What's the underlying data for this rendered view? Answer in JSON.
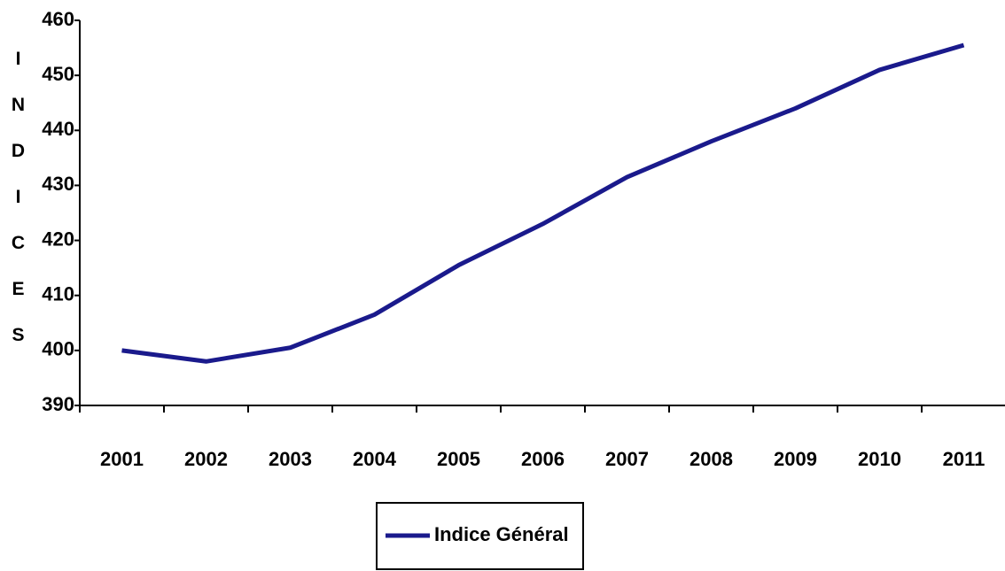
{
  "chart_data": {
    "type": "line",
    "y_label": "INDICES",
    "categories": [
      "2001",
      "2002",
      "2003",
      "2004",
      "2005",
      "2006",
      "2007",
      "2008",
      "2009",
      "2010",
      "2011"
    ],
    "series": [
      {
        "name": "Indice Général",
        "color": "#1a1a8c",
        "values": [
          400,
          398,
          400.5,
          406.5,
          415.5,
          423,
          431.5,
          438,
          444,
          451,
          455.5
        ]
      }
    ],
    "ylim": [
      390,
      460
    ],
    "yticks": [
      390,
      400,
      410,
      420,
      430,
      440,
      450,
      460
    ],
    "grid": false,
    "legend": "bottom"
  }
}
